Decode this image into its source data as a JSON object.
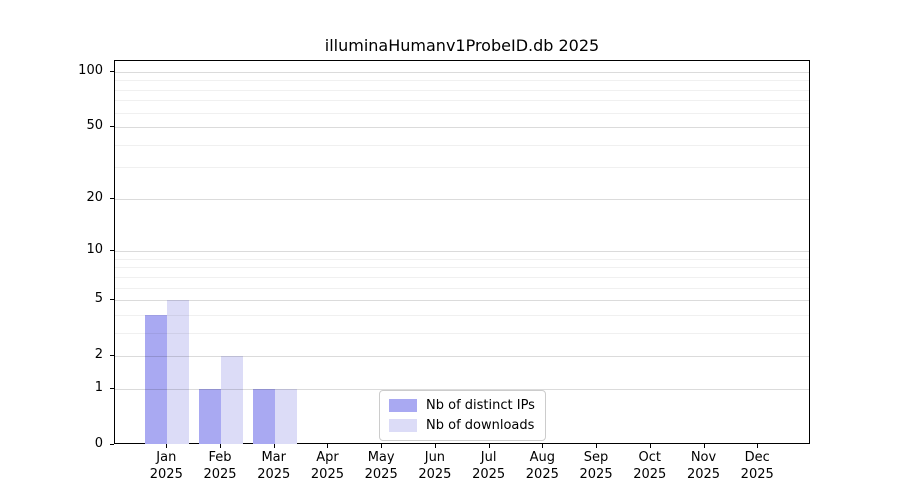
{
  "title": "illuminaHumanv1ProbeID.db 2025",
  "chart_data": {
    "type": "bar",
    "title": "illuminaHumanv1ProbeID.db 2025",
    "categories": [
      "Jan",
      "Feb",
      "Mar",
      "Apr",
      "May",
      "Jun",
      "Jul",
      "Aug",
      "Sep",
      "Oct",
      "Nov",
      "Dec"
    ],
    "category_year": "2025",
    "series": [
      {
        "name": "Nb of distinct IPs",
        "color": "#a9a9f2",
        "values": [
          4,
          1,
          1,
          0,
          0,
          0,
          0,
          0,
          0,
          0,
          0,
          0
        ]
      },
      {
        "name": "Nb of downloads",
        "color": "#dcdcf7",
        "values": [
          5,
          2,
          1,
          0,
          0,
          0,
          0,
          0,
          0,
          0,
          0,
          0
        ]
      }
    ],
    "yscale": "log1p",
    "ylim": [
      0,
      115
    ],
    "yticks": [
      0,
      1,
      2,
      5,
      10,
      20,
      50,
      100
    ],
    "minor_gridlines": [
      3,
      4,
      6,
      7,
      8,
      9,
      30,
      40,
      60,
      70,
      80,
      90
    ],
    "grid": true,
    "legend_position": "inside-bottom-center",
    "axis_color": "#000000"
  }
}
